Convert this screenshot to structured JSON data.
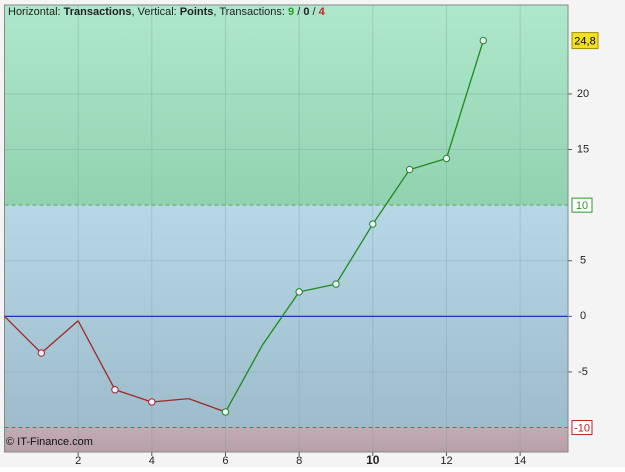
{
  "chart_data": {
    "type": "line",
    "title_parts": [
      {
        "text": "Horizontal: ",
        "bold": false,
        "color": "#222"
      },
      {
        "text": "Transactions",
        "bold": true,
        "color": "#222"
      },
      {
        "text": ", Vertical: ",
        "bold": false,
        "color": "#222"
      },
      {
        "text": "Points",
        "bold": true,
        "color": "#222"
      },
      {
        "text": ", Transactions: ",
        "bold": false,
        "color": "#222"
      },
      {
        "text": "9",
        "bold": true,
        "color": "#2a9a2a"
      },
      {
        "text": " / ",
        "bold": false,
        "color": "#222"
      },
      {
        "text": "0",
        "bold": true,
        "color": "#222"
      },
      {
        "text": " / ",
        "bold": false,
        "color": "#222"
      },
      {
        "text": "4",
        "bold": true,
        "color": "#c02020"
      }
    ],
    "copyright": "© IT-Finance.com",
    "x": [
      0,
      1,
      2,
      3,
      4,
      5,
      6,
      7,
      8,
      9,
      10,
      11,
      12,
      13
    ],
    "values": [
      0,
      -3.3,
      -0.4,
      -6.6,
      -7.7,
      -7.4,
      -8.6,
      -2.6,
      2.2,
      2.9,
      8.3,
      13.2,
      14.2,
      24.8
    ],
    "value_labels": [
      null,
      null,
      null,
      null,
      null,
      null,
      null,
      null,
      null,
      null,
      null,
      null,
      null,
      "24,8"
    ],
    "segment_colors": [
      "#a02828",
      "#a02828",
      "#a02828",
      "#a02828",
      "#a02828",
      "#a02828",
      "#1e8a1e",
      "#1e8a1e",
      "#1e8a1e",
      "#1e8a1e",
      "#1e8a1e",
      "#1e8a1e",
      "#1e8a1e"
    ],
    "markers": [
      false,
      true,
      false,
      true,
      true,
      false,
      true,
      false,
      true,
      true,
      true,
      true,
      true,
      true
    ],
    "xlim": [
      0,
      15.3
    ],
    "xticks": [
      2,
      4,
      6,
      8,
      10,
      12,
      14
    ],
    "x_bold_tick": 10,
    "ylim": [
      -12.2,
      28
    ],
    "yticks": [
      -5,
      0,
      5,
      15,
      20
    ],
    "levels": [
      {
        "value": 10,
        "color": "#2a9a2a"
      },
      {
        "value": -10,
        "color": "#c02020"
      }
    ],
    "zero_line_color": "#2030c0",
    "grid": true
  }
}
